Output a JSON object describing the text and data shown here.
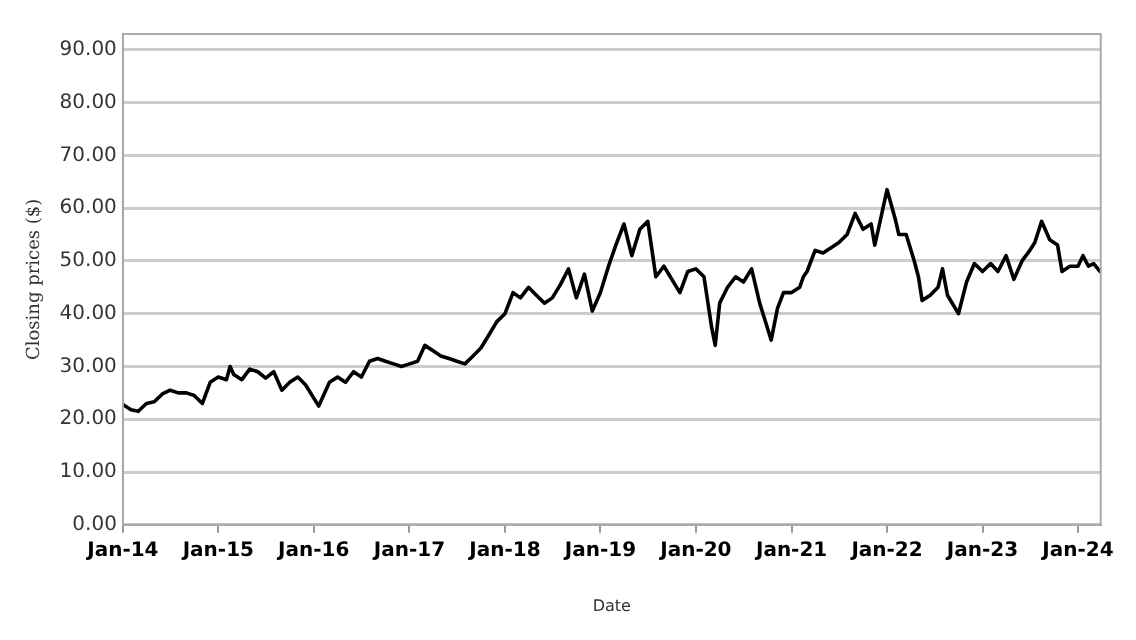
{
  "chart_data": {
    "type": "line",
    "xlabel": "Date",
    "ylabel": "Closing prices ($)",
    "xlim": [
      "2014-01-01",
      "2024-03-28"
    ],
    "xticks": [
      {
        "value": "2014-01-01",
        "label": "Jan-14"
      },
      {
        "value": "2015-01-01",
        "label": "Jan-15"
      },
      {
        "value": "2016-01-01",
        "label": "Jan-16"
      },
      {
        "value": "2017-01-01",
        "label": "Jan-17"
      },
      {
        "value": "2018-01-01",
        "label": "Jan-18"
      },
      {
        "value": "2019-01-01",
        "label": "Jan-19"
      },
      {
        "value": "2020-01-01",
        "label": "Jan-20"
      },
      {
        "value": "2021-01-01",
        "label": "Jan-21"
      },
      {
        "value": "2022-01-01",
        "label": "Jan-22"
      },
      {
        "value": "2023-01-01",
        "label": "Jan-23"
      },
      {
        "value": "2024-01-01",
        "label": "Jan-24"
      }
    ],
    "ylim": [
      0,
      93
    ],
    "yticks": [
      {
        "value": 0,
        "label": "0.00"
      },
      {
        "value": 10,
        "label": "10.00"
      },
      {
        "value": 20,
        "label": "20.00"
      },
      {
        "value": 30,
        "label": "30.00"
      },
      {
        "value": 40,
        "label": "40.00"
      },
      {
        "value": 50,
        "label": "50.00"
      },
      {
        "value": 60,
        "label": "60.00"
      },
      {
        "value": 70,
        "label": "70.00"
      },
      {
        "value": 80,
        "label": "80.00"
      },
      {
        "value": 90,
        "label": "90.00"
      }
    ],
    "grid": "y",
    "legend": false,
    "marker": "none",
    "line_style": "solid",
    "series": [
      {
        "color": "#000000",
        "x": [
          "2014-01-01",
          "2014-02-01",
          "2014-03-01",
          "2014-04-01",
          "2014-05-01",
          "2014-06-01",
          "2014-07-01",
          "2014-08-01",
          "2014-09-01",
          "2014-10-01",
          "2014-11-01",
          "2014-12-01",
          "2015-01-01",
          "2015-02-01",
          "2015-02-15",
          "2015-03-01",
          "2015-04-01",
          "2015-05-01",
          "2015-06-01",
          "2015-07-01",
          "2015-08-01",
          "2015-09-01",
          "2015-10-01",
          "2015-11-01",
          "2015-12-01",
          "2016-01-01",
          "2016-01-20",
          "2016-03-01",
          "2016-04-01",
          "2016-05-01",
          "2016-06-01",
          "2016-07-01",
          "2016-08-01",
          "2016-09-01",
          "2016-10-01",
          "2016-11-01",
          "2016-12-01",
          "2017-01-01",
          "2017-02-01",
          "2017-03-01",
          "2017-04-01",
          "2017-05-01",
          "2017-06-01",
          "2017-07-01",
          "2017-08-01",
          "2017-09-01",
          "2017-10-01",
          "2017-11-01",
          "2017-12-01",
          "2018-01-01",
          "2018-02-01",
          "2018-03-01",
          "2018-04-01",
          "2018-05-01",
          "2018-06-01",
          "2018-07-01",
          "2018-08-01",
          "2018-09-01",
          "2018-10-01",
          "2018-11-01",
          "2018-12-01",
          "2019-01-01",
          "2019-02-01",
          "2019-03-01",
          "2019-04-01",
          "2019-05-01",
          "2019-06-01",
          "2019-07-01",
          "2019-08-01",
          "2019-09-01",
          "2019-10-01",
          "2019-11-01",
          "2019-12-01",
          "2020-01-01",
          "2020-02-01",
          "2020-03-01",
          "2020-03-15",
          "2020-04-01",
          "2020-05-01",
          "2020-06-01",
          "2020-07-01",
          "2020-08-01",
          "2020-09-01",
          "2020-10-15",
          "2020-11-08",
          "2020-12-01",
          "2021-01-01",
          "2021-02-01",
          "2021-02-15",
          "2021-03-01",
          "2021-04-01",
          "2021-05-01",
          "2021-06-01",
          "2021-07-01",
          "2021-08-01",
          "2021-09-01",
          "2021-10-01",
          "2021-11-01",
          "2021-11-15",
          "2021-12-01",
          "2022-01-01",
          "2022-02-01",
          "2022-02-15",
          "2022-03-15",
          "2022-04-15",
          "2022-05-01",
          "2022-05-15",
          "2022-06-15",
          "2022-07-15",
          "2022-08-01",
          "2022-08-20",
          "2022-10-01",
          "2022-11-01",
          "2022-12-01",
          "2023-01-01",
          "2023-02-01",
          "2023-03-01",
          "2023-04-01",
          "2023-05-01",
          "2023-06-01",
          "2023-07-01",
          "2023-07-20",
          "2023-08-15",
          "2023-09-15",
          "2023-10-15",
          "2023-11-01",
          "2023-12-01",
          "2024-01-01",
          "2024-01-20",
          "2024-02-10",
          "2024-03-01",
          "2024-03-25"
        ],
        "values": [
          22.8,
          21.8,
          21.5,
          23,
          23.3,
          24.8,
          25.5,
          25,
          25,
          24.5,
          23,
          27,
          28,
          27.5,
          30,
          28.5,
          27.5,
          29.5,
          29,
          27.8,
          29,
          25.5,
          27,
          28,
          26.5,
          24,
          22.5,
          27,
          28,
          27,
          29,
          28,
          31,
          31.5,
          31,
          30.5,
          30,
          30.5,
          31,
          34,
          33,
          32,
          31.5,
          31,
          30.5,
          32,
          33.5,
          36,
          38.5,
          40,
          44,
          43,
          45,
          43.5,
          42,
          43,
          45.5,
          48.5,
          43,
          47.5,
          40.5,
          44,
          49,
          53,
          57,
          51,
          56,
          57.5,
          47,
          49,
          46.5,
          44,
          48,
          48.5,
          47,
          37.5,
          34,
          42,
          45,
          47,
          46,
          48.5,
          42,
          35,
          41,
          44,
          44,
          45,
          47,
          48,
          52,
          51.5,
          52.5,
          53.5,
          55,
          59,
          56,
          57,
          53,
          56.5,
          63.5,
          58,
          55,
          55,
          50,
          47,
          42.5,
          43.5,
          45,
          48.5,
          43.5,
          40,
          46,
          49.5,
          48,
          49.5,
          48,
          51,
          46.5,
          50,
          52,
          53.5,
          57.5,
          54,
          53,
          48,
          49,
          49,
          51,
          49,
          49.5,
          48
        ]
      }
    ]
  }
}
